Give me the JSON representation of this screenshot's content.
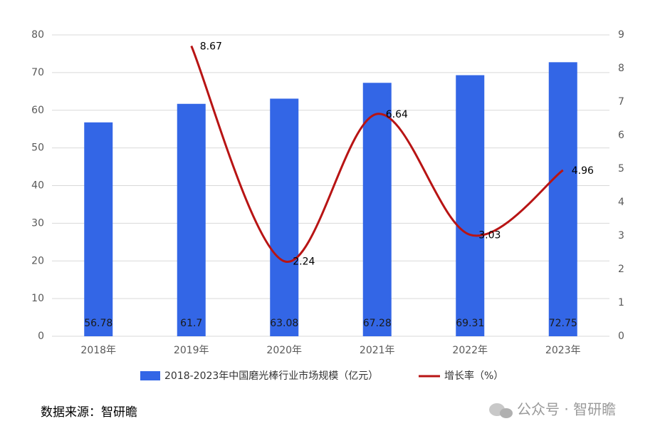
{
  "chart_data": {
    "type": "bar",
    "categories": [
      "2018年",
      "2019年",
      "2020年",
      "2021年",
      "2022年",
      "2023年"
    ],
    "series": [
      {
        "name": "2018-2023年中国磨光棒行业市场规模（亿元）",
        "type": "bar",
        "color": "#3366e6",
        "values": [
          56.78,
          61.7,
          63.08,
          67.28,
          69.31,
          72.75
        ]
      },
      {
        "name": "增长率（%）",
        "type": "line",
        "axis": "y2",
        "color": "#b81414",
        "values": [
          null,
          8.67,
          2.24,
          6.64,
          3.03,
          4.96
        ]
      }
    ],
    "ylim": [
      0,
      80
    ],
    "yticks": [
      0,
      10,
      20,
      30,
      40,
      50,
      60,
      70,
      80
    ],
    "y2lim": [
      0,
      9
    ],
    "y2ticks": [
      0,
      1,
      2,
      3,
      4,
      5,
      6,
      7,
      8,
      9
    ],
    "grid": true,
    "legend": "bottom"
  },
  "source": "数据来源：智研瞻",
  "watermark": "公众号 · 智研瞻"
}
